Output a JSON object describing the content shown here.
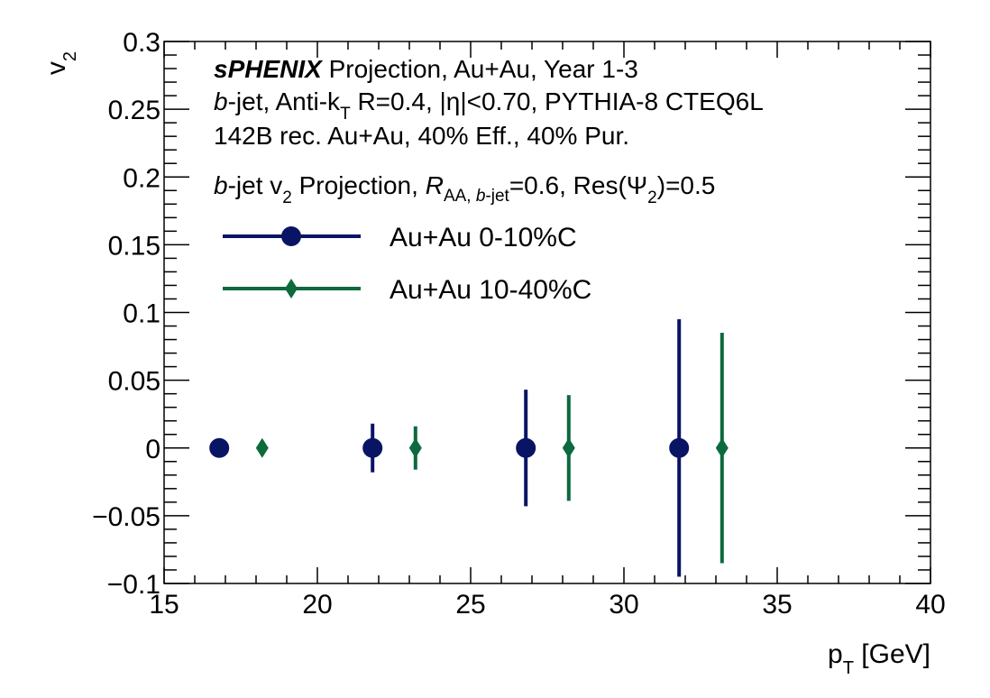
{
  "chart_data": {
    "type": "scatter",
    "xlabel": "p_T [GeV]",
    "ylabel": "v_2",
    "xlim": [
      15,
      40
    ],
    "ylim": [
      -0.1,
      0.3
    ],
    "x_ticks": [
      "15",
      "20",
      "25",
      "30",
      "35",
      "40"
    ],
    "y_ticks": [
      "−0.1",
      "−0.05",
      "0",
      "0.05",
      "0.1",
      "0.15",
      "0.2",
      "0.25",
      "0.3"
    ],
    "grid": false,
    "legend_position": "upper-left",
    "annotations": {
      "line1_bold": "sPHENIX",
      "line1_rest": " Projection, Au+Au, Year 1-3",
      "line2": "b-jet, Anti-k_T R=0.4, |η|<0.70, PYTHIA-8  CTEQ6L",
      "line3": "142B rec. Au+Au, 40% Eff., 40% Pur.",
      "line4": "b-jet v_2 Projection, R_AA, b-jet=0.6, Res(Ψ_2)=0.5"
    },
    "series": [
      {
        "name": "Au+Au 0-10%C",
        "color": "#0a1464",
        "marker": "circle",
        "x": [
          16.8,
          21.8,
          26.8,
          31.8
        ],
        "y": [
          0,
          0,
          0,
          0
        ],
        "yerr": [
          0,
          0.018,
          0.043,
          0.095
        ]
      },
      {
        "name": "Au+Au 10-40%C",
        "color": "#0c6a3c",
        "marker": "diamond",
        "x": [
          18.2,
          23.2,
          28.2,
          33.2
        ],
        "y": [
          0,
          0,
          0,
          0
        ],
        "yerr": [
          0,
          0.016,
          0.039,
          0.085
        ]
      }
    ]
  }
}
